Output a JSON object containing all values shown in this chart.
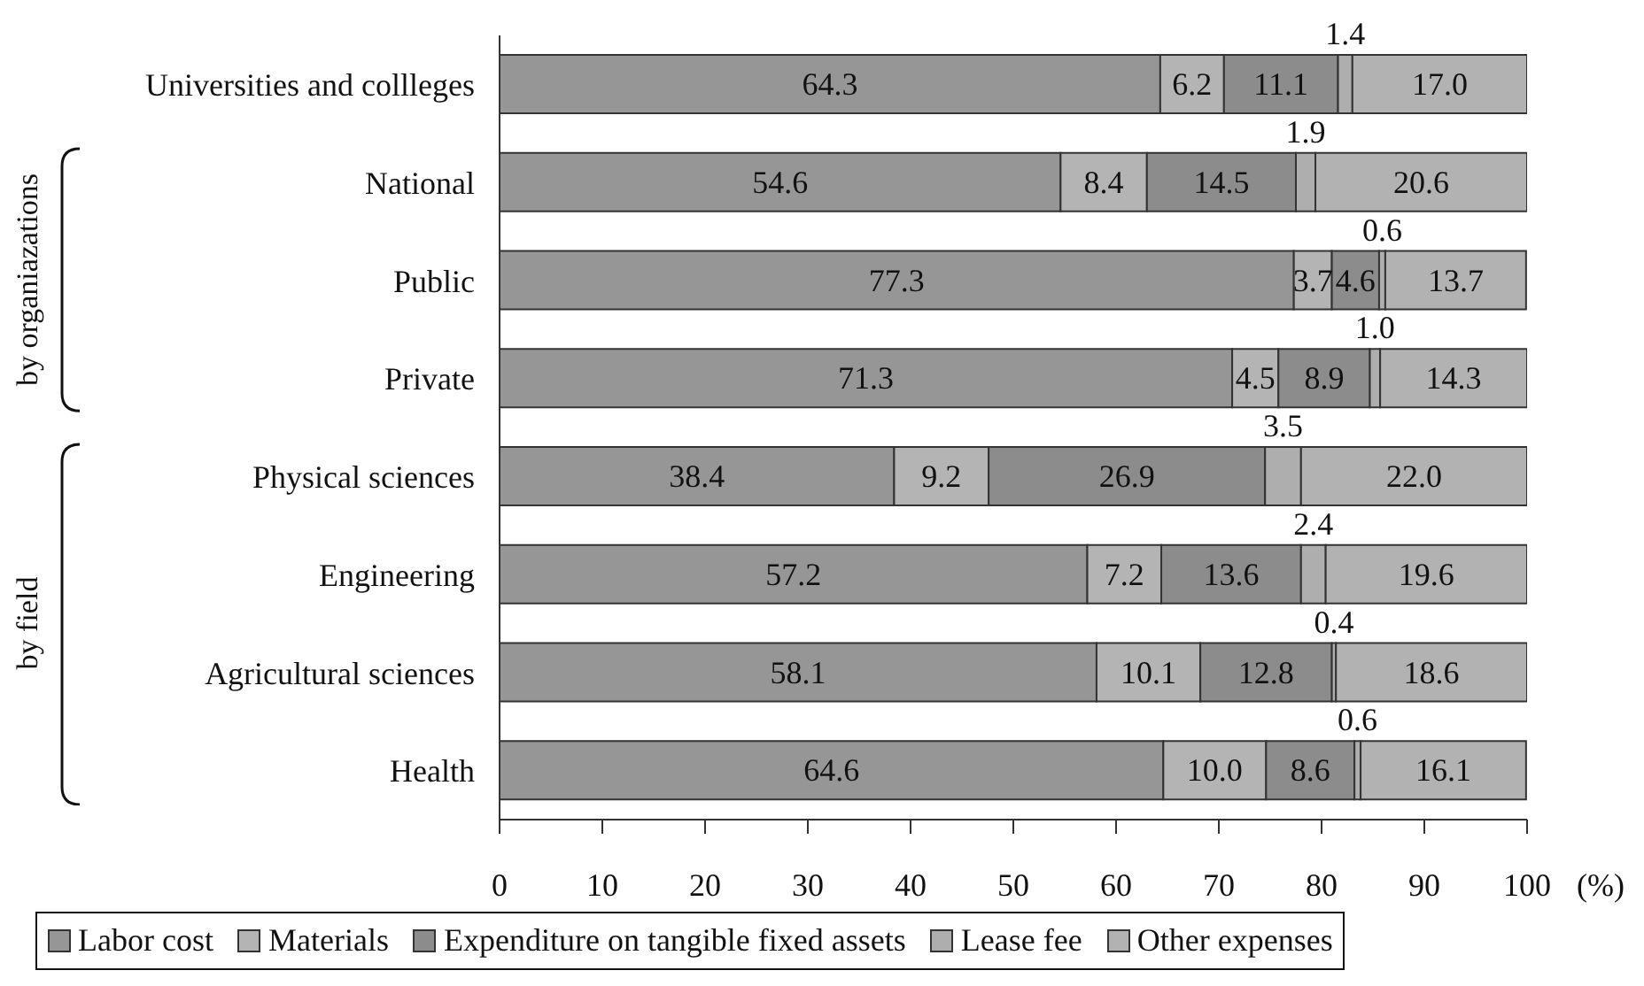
{
  "chart_data": {
    "type": "bar",
    "orientation": "horizontal",
    "stacked": true,
    "categories": [
      "Universities and collleges",
      "National",
      "Public",
      "Private",
      "Physical sciences",
      "Engineering",
      "Agricultural sciences",
      "Health"
    ],
    "series": [
      {
        "name": "Labor cost",
        "color": "#969696",
        "values": [
          64.3,
          54.6,
          77.3,
          71.3,
          38.4,
          57.2,
          58.1,
          64.6
        ],
        "value_labels": [
          "64.3",
          "54.6",
          "77.3",
          "71.3",
          "38.4",
          "57.2",
          "58.1",
          "64.6"
        ]
      },
      {
        "name": "Materials",
        "color": "#b4b4b4",
        "values": [
          6.2,
          8.4,
          3.7,
          4.5,
          9.2,
          7.2,
          10.1,
          10.0
        ],
        "value_labels": [
          "6.2",
          "8.4",
          "3.7",
          "4.5",
          "9.2",
          "7.2",
          "10.1",
          "10.0"
        ]
      },
      {
        "name": "Expenditure on tangible fixed assets",
        "color": "#8c8c8c",
        "values": [
          11.1,
          14.5,
          4.6,
          8.9,
          26.9,
          13.6,
          12.8,
          8.6
        ],
        "value_labels": [
          "11.1",
          "14.5",
          "4.6",
          "8.9",
          "26.9",
          "13.6",
          "12.8",
          "8.6"
        ]
      },
      {
        "name": "Lease fee",
        "color": "#aeaeae",
        "values": [
          1.4,
          1.9,
          0.6,
          1.0,
          3.5,
          2.4,
          0.4,
          0.6
        ],
        "value_labels": [
          "1.4",
          "1.9",
          "0.6",
          "1.0",
          "3.5",
          "2.4",
          "0.4",
          "0.6"
        ]
      },
      {
        "name": "Other expenses",
        "color": "#b2b2b2",
        "values": [
          17.0,
          20.6,
          13.7,
          14.3,
          22.0,
          19.6,
          18.6,
          16.1
        ],
        "value_labels": [
          "17.0",
          "20.6",
          "13.7",
          "14.3",
          "22.0",
          "19.6",
          "18.6",
          "16.1"
        ]
      }
    ],
    "xlim": [
      0,
      100
    ],
    "xticks": [
      0,
      10,
      20,
      30,
      40,
      50,
      60,
      70,
      80,
      90,
      100
    ],
    "xlabel": "(%)",
    "grid": false,
    "legend": "bottom",
    "annotations": [
      "by organiazations",
      "by field"
    ]
  }
}
